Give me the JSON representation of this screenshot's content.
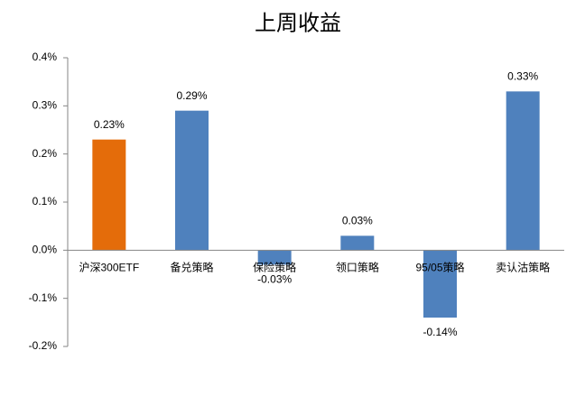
{
  "chart_data": {
    "type": "bar",
    "title": "上周收益",
    "categories": [
      "沪深300ETF",
      "备兑策略",
      "保险策略",
      "领口策略",
      "95/05策略",
      "卖认沽策略"
    ],
    "values": [
      0.23,
      0.29,
      -0.03,
      0.03,
      -0.14,
      0.33
    ],
    "value_labels": [
      "0.23%",
      "0.29%",
      "-0.03%",
      "0.03%",
      "-0.14%",
      "0.33%"
    ],
    "colors": [
      "#e46c0a",
      "#4f81bd",
      "#4f81bd",
      "#4f81bd",
      "#4f81bd",
      "#4f81bd"
    ],
    "ylim": [
      -0.2,
      0.4
    ],
    "yticks": [
      {
        "value": -0.2,
        "label": "-0.2%"
      },
      {
        "value": -0.1,
        "label": "-0.1%"
      },
      {
        "value": 0,
        "label": "0.0%"
      },
      {
        "value": 0.1,
        "label": "0.1%"
      },
      {
        "value": 0.2,
        "label": "0.2%"
      },
      {
        "value": 0.3,
        "label": "0.3%"
      },
      {
        "value": 0.4,
        "label": "0.4%"
      }
    ],
    "grid": false
  }
}
